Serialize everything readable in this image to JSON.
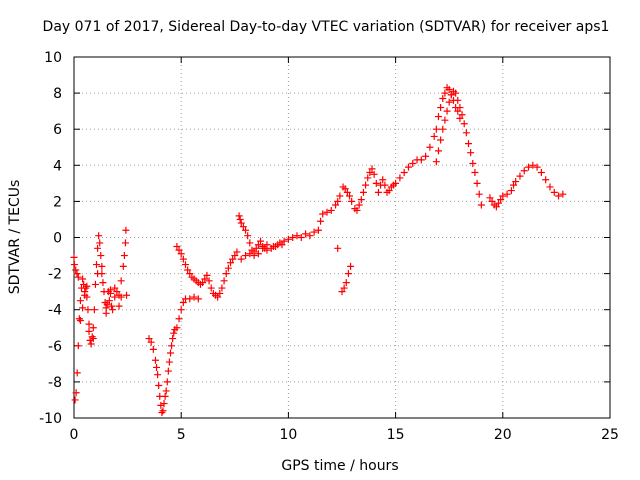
{
  "chart_data": {
    "type": "scatter",
    "title": "Day 071 of 2017, Sidereal Day-to-day VTEC variation (SDTVAR) for receiver aps1",
    "xlabel": "GPS time / hours",
    "ylabel": "SDTVAR / TECUs",
    "xlim": [
      0,
      25
    ],
    "ylim": [
      -10,
      10
    ],
    "xticks": [
      "0",
      "5",
      "10",
      "15",
      "20",
      "25"
    ],
    "yticks": [
      "-10",
      "-8",
      "-6",
      "-4",
      "-2",
      "0",
      "2",
      "4",
      "6",
      "8",
      "10"
    ],
    "grid": true,
    "marker": "+",
    "color": "#ff0000",
    "series": [
      {
        "name": "SDTVAR",
        "points": [
          [
            0.0,
            -1.1
          ],
          [
            0.05,
            -9.0
          ],
          [
            0.1,
            -8.6
          ],
          [
            0.15,
            -7.5
          ],
          [
            0.2,
            -6.0
          ],
          [
            0.25,
            -4.5
          ],
          [
            0.3,
            -3.5
          ],
          [
            0.35,
            -2.8
          ],
          [
            0.4,
            -2.3
          ],
          [
            0.45,
            -2.6
          ],
          [
            0.5,
            -3.0
          ],
          [
            0.55,
            -2.8
          ],
          [
            0.6,
            -3.3
          ],
          [
            0.65,
            -4.0
          ],
          [
            0.7,
            -5.2
          ],
          [
            0.75,
            -5.7
          ],
          [
            0.8,
            -5.9
          ],
          [
            0.85,
            -5.5
          ],
          [
            0.9,
            -5.0
          ],
          [
            0.95,
            -4.0
          ],
          [
            1.0,
            -2.6
          ],
          [
            1.05,
            -1.5
          ],
          [
            1.1,
            -0.6
          ],
          [
            1.15,
            0.1
          ],
          [
            1.2,
            -0.3
          ],
          [
            1.25,
            -1.0
          ],
          [
            1.3,
            -1.6
          ],
          [
            1.35,
            -2.5
          ],
          [
            1.4,
            -3.0
          ],
          [
            1.45,
            -3.6
          ],
          [
            1.5,
            -4.2
          ],
          [
            1.55,
            -3.7
          ],
          [
            1.6,
            -3.0
          ],
          [
            1.65,
            -3.5
          ],
          [
            1.7,
            -3.1
          ],
          [
            1.75,
            -3.8
          ],
          [
            1.8,
            -4.0
          ],
          [
            1.9,
            -3.3
          ],
          [
            2.0,
            -3.0
          ],
          [
            2.1,
            -3.2
          ],
          [
            2.2,
            -2.4
          ],
          [
            2.3,
            -1.6
          ],
          [
            2.35,
            -1.0
          ],
          [
            2.4,
            -0.3
          ],
          [
            2.42,
            0.4
          ],
          [
            2.45,
            -3.2
          ],
          [
            0.02,
            -1.5
          ],
          [
            0.08,
            -1.8
          ],
          [
            0.14,
            -2.0
          ],
          [
            0.2,
            -2.2
          ],
          [
            0.3,
            -4.6
          ],
          [
            0.4,
            -3.9
          ],
          [
            0.5,
            -3.2
          ],
          [
            0.6,
            -2.7
          ],
          [
            0.7,
            -4.8
          ],
          [
            0.9,
            -5.6
          ],
          [
            1.1,
            -2.0
          ],
          [
            1.3,
            -2.0
          ],
          [
            1.5,
            -3.9
          ],
          [
            1.7,
            -2.9
          ],
          [
            1.9,
            -2.8
          ],
          [
            2.1,
            -3.8
          ],
          [
            2.2,
            -3.3
          ],
          [
            3.5,
            -5.6
          ],
          [
            3.6,
            -5.8
          ],
          [
            3.7,
            -6.2
          ],
          [
            3.8,
            -6.8
          ],
          [
            3.85,
            -7.2
          ],
          [
            3.9,
            -7.6
          ],
          [
            3.95,
            -8.2
          ],
          [
            4.0,
            -8.8
          ],
          [
            4.05,
            -9.3
          ],
          [
            4.1,
            -9.7
          ],
          [
            4.15,
            -9.6
          ],
          [
            4.2,
            -9.2
          ],
          [
            4.25,
            -8.8
          ],
          [
            4.3,
            -8.5
          ],
          [
            4.35,
            -8.0
          ],
          [
            4.4,
            -7.4
          ],
          [
            4.45,
            -6.9
          ],
          [
            4.5,
            -6.4
          ],
          [
            4.55,
            -6.0
          ],
          [
            4.6,
            -5.6
          ],
          [
            4.65,
            -5.3
          ],
          [
            4.7,
            -5.1
          ],
          [
            4.8,
            -5.0
          ],
          [
            4.9,
            -4.5
          ],
          [
            5.0,
            -4.0
          ],
          [
            5.1,
            -3.6
          ],
          [
            5.2,
            -3.4
          ],
          [
            5.4,
            -3.4
          ],
          [
            5.6,
            -3.3
          ],
          [
            5.8,
            -3.4
          ],
          [
            4.8,
            -0.5
          ],
          [
            4.9,
            -0.7
          ],
          [
            5.0,
            -0.9
          ],
          [
            5.1,
            -1.2
          ],
          [
            5.2,
            -1.5
          ],
          [
            5.3,
            -1.8
          ],
          [
            5.4,
            -2.0
          ],
          [
            5.5,
            -2.2
          ],
          [
            5.6,
            -2.3
          ],
          [
            5.7,
            -2.4
          ],
          [
            5.8,
            -2.5
          ],
          [
            5.9,
            -2.6
          ],
          [
            6.0,
            -2.5
          ],
          [
            6.1,
            -2.3
          ],
          [
            6.2,
            -2.1
          ],
          [
            6.3,
            -2.4
          ],
          [
            6.4,
            -2.8
          ],
          [
            6.5,
            -3.1
          ],
          [
            6.6,
            -3.2
          ],
          [
            6.7,
            -3.3
          ],
          [
            6.8,
            -3.1
          ],
          [
            6.9,
            -2.8
          ],
          [
            7.0,
            -2.4
          ],
          [
            7.1,
            -2.0
          ],
          [
            7.2,
            -1.7
          ],
          [
            7.3,
            -1.4
          ],
          [
            7.4,
            -1.2
          ],
          [
            7.5,
            -1.0
          ],
          [
            7.6,
            -0.8
          ],
          [
            7.7,
            1.2
          ],
          [
            7.75,
            1.0
          ],
          [
            7.8,
            0.8
          ],
          [
            7.9,
            0.6
          ],
          [
            8.0,
            0.4
          ],
          [
            8.1,
            0.1
          ],
          [
            8.2,
            -0.3
          ],
          [
            8.3,
            -0.7
          ],
          [
            8.4,
            -0.8
          ],
          [
            8.5,
            -0.6
          ],
          [
            8.6,
            -0.4
          ],
          [
            8.7,
            -0.2
          ],
          [
            8.8,
            -0.5
          ],
          [
            8.9,
            -0.6
          ],
          [
            9.0,
            -0.4
          ],
          [
            9.2,
            -0.6
          ],
          [
            9.4,
            -0.5
          ],
          [
            9.6,
            -0.3
          ],
          [
            9.8,
            -0.2
          ],
          [
            10.0,
            -0.1
          ],
          [
            10.2,
            0.0
          ],
          [
            10.4,
            0.1
          ],
          [
            10.6,
            0.0
          ],
          [
            10.8,
            0.2
          ],
          [
            11.0,
            0.1
          ],
          [
            11.2,
            0.3
          ],
          [
            11.4,
            0.4
          ],
          [
            11.5,
            0.9
          ],
          [
            11.6,
            1.3
          ],
          [
            11.8,
            1.4
          ],
          [
            12.0,
            1.5
          ],
          [
            12.2,
            1.8
          ],
          [
            12.3,
            2.0
          ],
          [
            12.4,
            2.3
          ],
          [
            7.8,
            -1.2
          ],
          [
            8.0,
            -1.0
          ],
          [
            8.2,
            -0.9
          ],
          [
            8.4,
            -1.0
          ],
          [
            8.6,
            -0.9
          ],
          [
            8.8,
            -0.6
          ],
          [
            9.0,
            -0.7
          ],
          [
            9.3,
            -0.5
          ],
          [
            9.5,
            -0.4
          ],
          [
            9.7,
            -0.4
          ],
          [
            12.3,
            -0.6
          ],
          [
            12.5,
            -3.0
          ],
          [
            12.6,
            -2.8
          ],
          [
            12.7,
            -2.5
          ],
          [
            12.8,
            -2.0
          ],
          [
            12.9,
            -1.6
          ],
          [
            12.55,
            2.8
          ],
          [
            12.65,
            2.7
          ],
          [
            12.75,
            2.5
          ],
          [
            12.85,
            2.3
          ],
          [
            12.95,
            2.0
          ],
          [
            13.1,
            1.6
          ],
          [
            13.2,
            1.5
          ],
          [
            13.3,
            1.8
          ],
          [
            13.4,
            2.1
          ],
          [
            13.5,
            2.5
          ],
          [
            13.6,
            2.9
          ],
          [
            13.7,
            3.3
          ],
          [
            13.8,
            3.6
          ],
          [
            13.9,
            3.8
          ],
          [
            14.0,
            3.5
          ],
          [
            14.1,
            3.0
          ],
          [
            14.2,
            2.5
          ],
          [
            14.3,
            2.9
          ],
          [
            14.4,
            3.2
          ],
          [
            14.5,
            2.9
          ],
          [
            14.6,
            2.5
          ],
          [
            14.7,
            2.6
          ],
          [
            14.8,
            2.8
          ],
          [
            14.9,
            2.9
          ],
          [
            15.0,
            3.0
          ],
          [
            15.2,
            3.3
          ],
          [
            15.4,
            3.6
          ],
          [
            15.6,
            3.9
          ],
          [
            15.8,
            4.1
          ],
          [
            16.0,
            4.3
          ],
          [
            16.2,
            4.3
          ],
          [
            16.4,
            4.5
          ],
          [
            16.6,
            5.0
          ],
          [
            16.8,
            5.6
          ],
          [
            16.9,
            6.0
          ],
          [
            17.0,
            6.7
          ],
          [
            17.1,
            7.2
          ],
          [
            17.2,
            7.7
          ],
          [
            17.3,
            8.0
          ],
          [
            17.4,
            8.3
          ],
          [
            17.5,
            8.2
          ],
          [
            17.6,
            7.9
          ],
          [
            17.7,
            7.6
          ],
          [
            17.8,
            7.2
          ],
          [
            17.9,
            7.0
          ],
          [
            18.0,
            6.6
          ],
          [
            16.9,
            4.2
          ],
          [
            17.0,
            4.8
          ],
          [
            17.1,
            5.4
          ],
          [
            17.2,
            6.0
          ],
          [
            17.3,
            6.5
          ],
          [
            17.4,
            7.0
          ],
          [
            17.5,
            7.5
          ],
          [
            17.6,
            7.9
          ],
          [
            17.7,
            8.1
          ],
          [
            17.8,
            8.0
          ],
          [
            17.9,
            7.6
          ],
          [
            18.0,
            7.2
          ],
          [
            18.1,
            6.8
          ],
          [
            18.2,
            6.3
          ],
          [
            18.3,
            5.8
          ],
          [
            18.4,
            5.2
          ],
          [
            18.5,
            4.7
          ],
          [
            18.6,
            4.1
          ],
          [
            18.7,
            3.6
          ],
          [
            18.8,
            3.0
          ],
          [
            18.9,
            2.4
          ],
          [
            19.0,
            1.8
          ],
          [
            19.4,
            2.2
          ],
          [
            19.5,
            2.0
          ],
          [
            19.6,
            1.8
          ],
          [
            19.7,
            1.7
          ],
          [
            19.8,
            1.9
          ],
          [
            19.9,
            2.1
          ],
          [
            20.0,
            2.3
          ],
          [
            20.2,
            2.4
          ],
          [
            20.4,
            2.6
          ],
          [
            20.5,
            2.9
          ],
          [
            20.6,
            3.1
          ],
          [
            20.8,
            3.4
          ],
          [
            21.0,
            3.7
          ],
          [
            21.2,
            3.9
          ],
          [
            21.4,
            4.0
          ],
          [
            21.6,
            3.9
          ],
          [
            21.8,
            3.6
          ],
          [
            22.0,
            3.2
          ],
          [
            22.2,
            2.8
          ],
          [
            22.4,
            2.5
          ],
          [
            22.6,
            2.3
          ],
          [
            22.8,
            2.4
          ]
        ]
      }
    ]
  }
}
